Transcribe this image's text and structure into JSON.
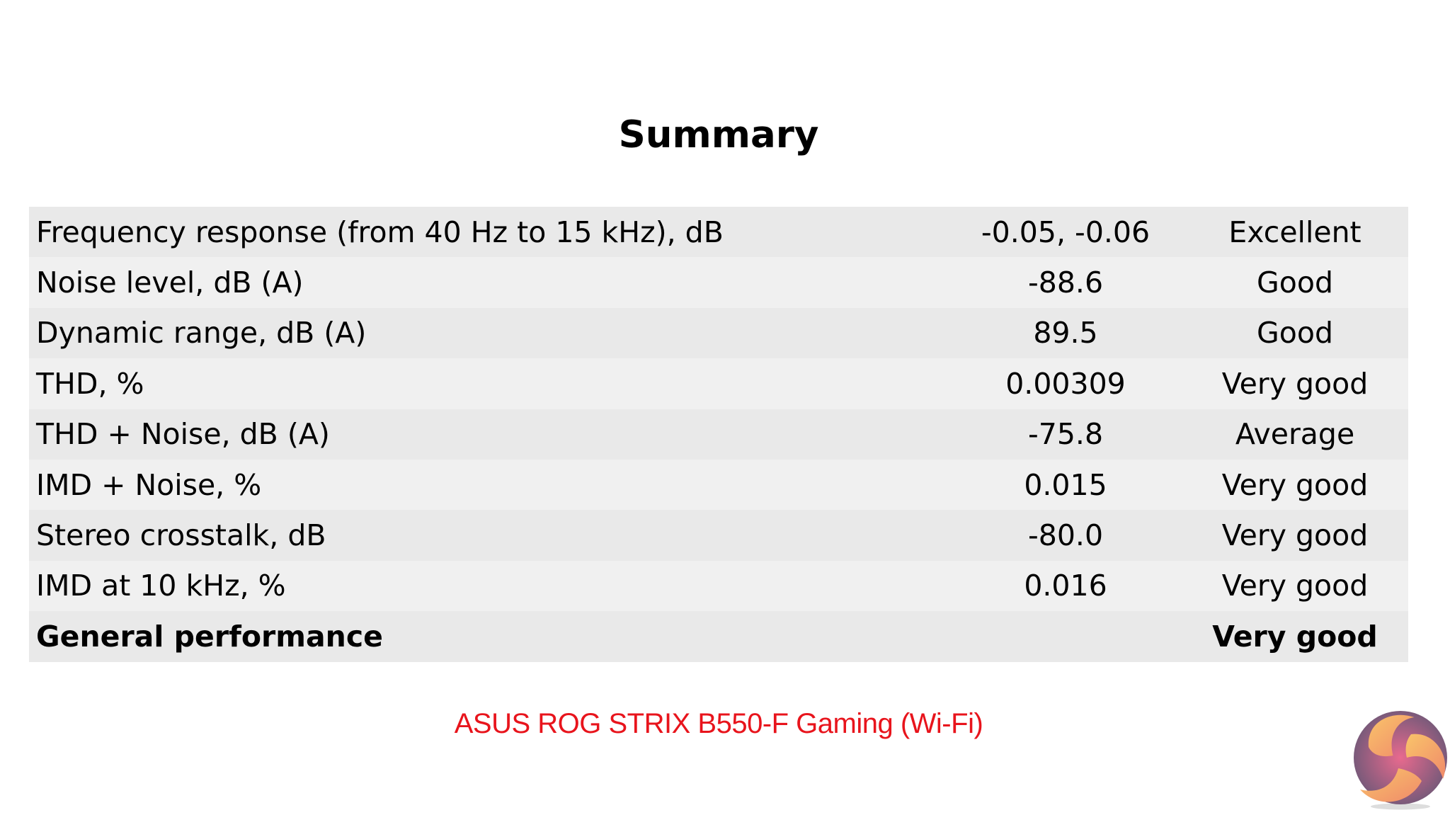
{
  "title": "Summary",
  "rows": [
    {
      "metric": "Frequency response (from 40 Hz to 15 kHz), dB",
      "value": "-0.05, -0.06",
      "rating": "Excellent"
    },
    {
      "metric": "Noise level, dB (A)",
      "value": "-88.6",
      "rating": "Good"
    },
    {
      "metric": "Dynamic range, dB (A)",
      "value": "89.5",
      "rating": "Good"
    },
    {
      "metric": "THD, %",
      "value": "0.00309",
      "rating": "Very good"
    },
    {
      "metric": "THD + Noise, dB (A)",
      "value": "-75.8",
      "rating": "Average"
    },
    {
      "metric": "IMD + Noise, %",
      "value": "0.015",
      "rating": "Very good"
    },
    {
      "metric": "Stereo crosstalk, dB",
      "value": "-80.0",
      "rating": "Very good"
    },
    {
      "metric": "IMD at 10 kHz, %",
      "value": "0.016",
      "rating": "Very good"
    }
  ],
  "total": {
    "metric": "General performance",
    "value": "",
    "rating": "Very good"
  },
  "caption": "ASUS ROG STRIX B550-F Gaming (Wi-Fi)",
  "colors": {
    "caption": "#e8141c",
    "row_dark": "#e9e9e9",
    "row_light": "#f0f0f0"
  },
  "logo_icon": "kitguru-swirl-logo"
}
